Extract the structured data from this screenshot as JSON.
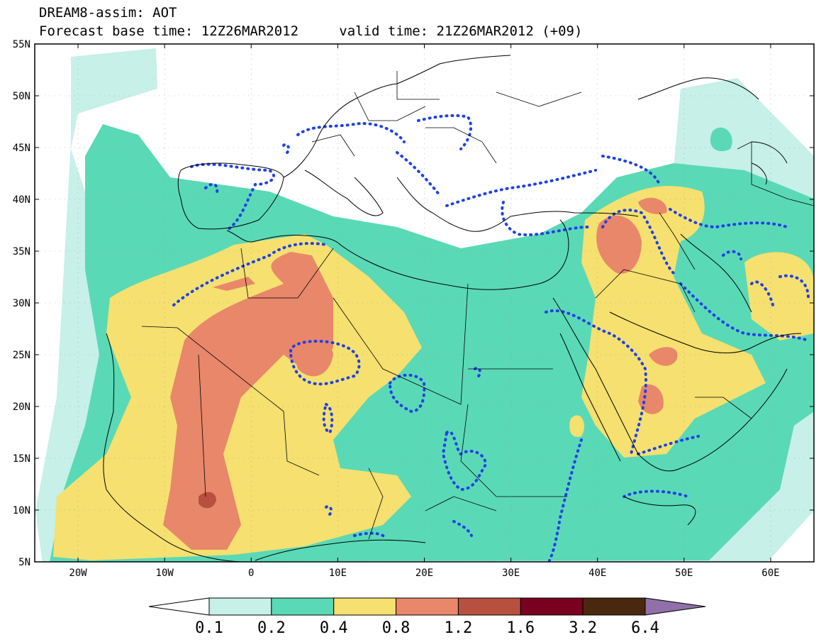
{
  "header": {
    "line1": "DREAM8-assim: AOT",
    "line2_base": "Forecast base time: 12Z26MAR2012",
    "line2_valid": "valid time: 21Z26MAR2012 (+09)"
  },
  "map": {
    "variable": "AOT",
    "lon_range": [
      -25,
      65
    ],
    "lat_range": [
      5,
      55
    ],
    "lat_labels": [
      "55N",
      "50N",
      "45N",
      "40N",
      "35N",
      "30N",
      "25N",
      "20N",
      "15N",
      "10N",
      "5N"
    ],
    "lon_labels": [
      "20W",
      "10W",
      "0",
      "10E",
      "20E",
      "30E",
      "40E",
      "50E",
      "60E"
    ]
  },
  "colorbar": {
    "levels": [
      "0.1",
      "0.2",
      "0.4",
      "0.8",
      "1.2",
      "1.6",
      "3.2",
      "6.4"
    ],
    "colors": [
      "#ffffff",
      "#c6f0e8",
      "#5ad9b6",
      "#f5e070",
      "#e8876a",
      "#b85040",
      "#7a0020",
      "#4a2810",
      "#9070a8"
    ]
  },
  "overlay": {
    "contour_color": "#2040e8"
  }
}
